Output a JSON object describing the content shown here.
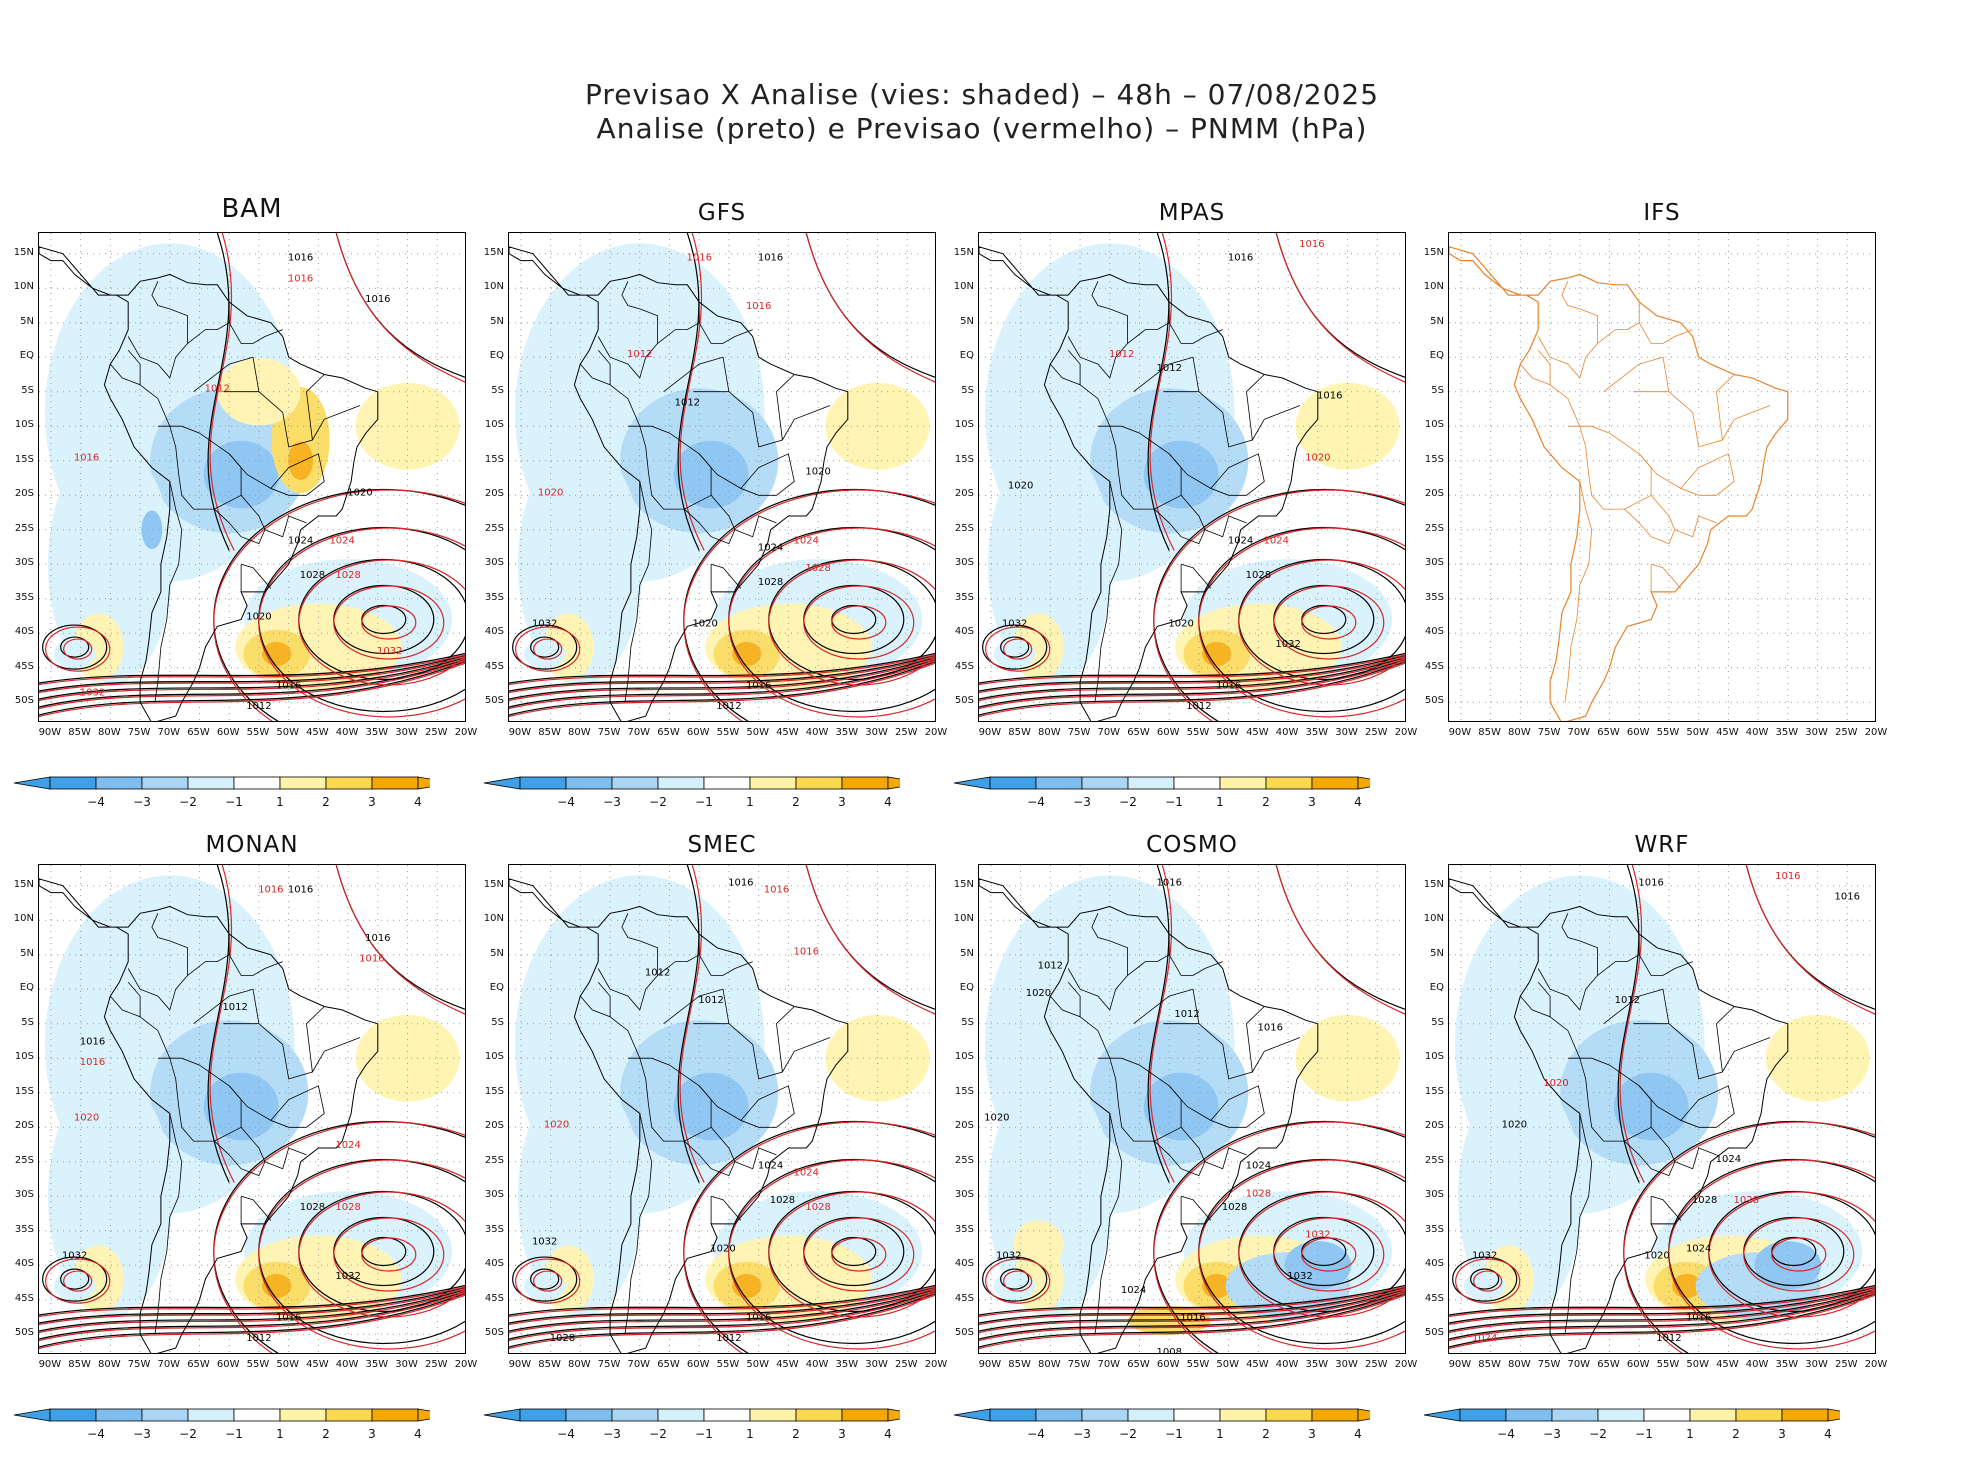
{
  "header": {
    "line1": "Previsao X Analise (vies: shaded) – 48h – 07/08/2025",
    "line2": "Analise (preto) e Previsao (vermelho) – PNMM (hPa)"
  },
  "lat_labels": [
    "15N",
    "10N",
    "5N",
    "EQ",
    "5S",
    "10S",
    "15S",
    "20S",
    "25S",
    "30S",
    "35S",
    "40S",
    "45S",
    "50S"
  ],
  "lon_labels": [
    "90W",
    "85W",
    "80W",
    "75W",
    "70W",
    "65W",
    "60W",
    "55W",
    "50W",
    "45W",
    "40W",
    "35W",
    "30W",
    "25W",
    "20W"
  ],
  "colorbar": {
    "labels": [
      "−4",
      "−3",
      "−2",
      "−1",
      "1",
      "2",
      "3",
      "4"
    ],
    "colors": [
      "#3fa0e8",
      "#7dbdf0",
      "#a9d6f6",
      "#d4f0fb",
      "#ffffff",
      "#fff3a6",
      "#fbd84f",
      "#f5a800"
    ]
  },
  "colors": {
    "analysis": "#000000",
    "forecast": "#d62728",
    "ifs_coast": "#e8842a",
    "neg_bias": "#a9d6f6",
    "pos_bias": "#fbd84f"
  },
  "panels": [
    {
      "id": "bam",
      "title": "BAM",
      "has_data": true,
      "has_colorbar": true,
      "isobar_labels": [
        {
          "text": "1016",
          "color": "black",
          "lat": 14,
          "lon": -48
        },
        {
          "text": "1016",
          "color": "red",
          "lat": 11,
          "lon": -48
        },
        {
          "text": "1016",
          "color": "black",
          "lat": 8,
          "lon": -35
        },
        {
          "text": "1012",
          "color": "red",
          "lat": -5,
          "lon": -62
        },
        {
          "text": "1016",
          "color": "red",
          "lat": -15,
          "lon": -84
        },
        {
          "text": "1020",
          "color": "black",
          "lat": -20,
          "lon": -38
        },
        {
          "text": "1024",
          "color": "black",
          "lat": -27,
          "lon": -48
        },
        {
          "text": "1024",
          "color": "red",
          "lat": -27,
          "lon": -41
        },
        {
          "text": "1028",
          "color": "black",
          "lat": -32,
          "lon": -46
        },
        {
          "text": "1028",
          "color": "red",
          "lat": -32,
          "lon": -40
        },
        {
          "text": "1020",
          "color": "black",
          "lat": -38,
          "lon": -55
        },
        {
          "text": "1032",
          "color": "red",
          "lat": -43,
          "lon": -33
        },
        {
          "text": "1016",
          "color": "black",
          "lat": -48,
          "lon": -50
        },
        {
          "text": "1012",
          "color": "black",
          "lat": -51,
          "lon": -55
        },
        {
          "text": "1032",
          "color": "red",
          "lat": -49,
          "lon": -83
        }
      ]
    },
    {
      "id": "gfs",
      "title": "GFS",
      "has_data": true,
      "has_colorbar": true,
      "isobar_labels": [
        {
          "text": "1016",
          "color": "black",
          "lat": 14,
          "lon": -48
        },
        {
          "text": "1016",
          "color": "red",
          "lat": 14,
          "lon": -60
        },
        {
          "text": "1016",
          "color": "red",
          "lat": 7,
          "lon": -50
        },
        {
          "text": "1012",
          "color": "red",
          "lat": 0,
          "lon": -70
        },
        {
          "text": "1012",
          "color": "black",
          "lat": -7,
          "lon": -62
        },
        {
          "text": "1020",
          "color": "black",
          "lat": -17,
          "lon": -40
        },
        {
          "text": "1020",
          "color": "red",
          "lat": -20,
          "lon": -85
        },
        {
          "text": "1024",
          "color": "black",
          "lat": -28,
          "lon": -48
        },
        {
          "text": "1024",
          "color": "red",
          "lat": -27,
          "lon": -42
        },
        {
          "text": "1028",
          "color": "black",
          "lat": -33,
          "lon": -48
        },
        {
          "text": "1028",
          "color": "red",
          "lat": -31,
          "lon": -40
        },
        {
          "text": "1032",
          "color": "black",
          "lat": -39,
          "lon": -86
        },
        {
          "text": "1020",
          "color": "black",
          "lat": -39,
          "lon": -59
        },
        {
          "text": "1016",
          "color": "black",
          "lat": -48,
          "lon": -50
        },
        {
          "text": "1012",
          "color": "black",
          "lat": -51,
          "lon": -55
        }
      ]
    },
    {
      "id": "mpas",
      "title": "MPAS",
      "has_data": true,
      "has_colorbar": true,
      "isobar_labels": [
        {
          "text": "1016",
          "color": "black",
          "lat": 14,
          "lon": -48
        },
        {
          "text": "1016",
          "color": "red",
          "lat": 16,
          "lon": -36
        },
        {
          "text": "1012",
          "color": "black",
          "lat": -2,
          "lon": -60
        },
        {
          "text": "1012",
          "color": "red",
          "lat": 0,
          "lon": -68
        },
        {
          "text": "1016",
          "color": "black",
          "lat": -6,
          "lon": -33
        },
        {
          "text": "1020",
          "color": "black",
          "lat": -19,
          "lon": -85
        },
        {
          "text": "1020",
          "color": "red",
          "lat": -15,
          "lon": -35
        },
        {
          "text": "1024",
          "color": "black",
          "lat": -27,
          "lon": -48
        },
        {
          "text": "1024",
          "color": "red",
          "lat": -27,
          "lon": -42
        },
        {
          "text": "1028",
          "color": "black",
          "lat": -32,
          "lon": -45
        },
        {
          "text": "1032",
          "color": "black",
          "lat": -39,
          "lon": -86
        },
        {
          "text": "1032",
          "color": "black",
          "lat": -42,
          "lon": -40
        },
        {
          "text": "1020",
          "color": "black",
          "lat": -39,
          "lon": -58
        },
        {
          "text": "1016",
          "color": "black",
          "lat": -48,
          "lon": -50
        },
        {
          "text": "1012",
          "color": "black",
          "lat": -51,
          "lon": -55
        }
      ]
    },
    {
      "id": "ifs",
      "title": "IFS",
      "has_data": false,
      "has_colorbar": false,
      "isobar_labels": []
    },
    {
      "id": "monan",
      "title": "MONAN",
      "has_data": true,
      "has_colorbar": true,
      "isobar_labels": [
        {
          "text": "1016",
          "color": "black",
          "lat": 14,
          "lon": -48
        },
        {
          "text": "1016",
          "color": "red",
          "lat": 14,
          "lon": -53
        },
        {
          "text": "1016",
          "color": "black",
          "lat": 7,
          "lon": -35
        },
        {
          "text": "1016",
          "color": "red",
          "lat": 4,
          "lon": -36
        },
        {
          "text": "1012",
          "color": "black",
          "lat": -3,
          "lon": -59
        },
        {
          "text": "1016",
          "color": "black",
          "lat": -8,
          "lon": -83
        },
        {
          "text": "1016",
          "color": "red",
          "lat": -11,
          "lon": -83
        },
        {
          "text": "1020",
          "color": "red",
          "lat": -19,
          "lon": -84
        },
        {
          "text": "1024",
          "color": "red",
          "lat": -23,
          "lon": -40
        },
        {
          "text": "1028",
          "color": "black",
          "lat": -32,
          "lon": -46
        },
        {
          "text": "1028",
          "color": "red",
          "lat": -32,
          "lon": -40
        },
        {
          "text": "1032",
          "color": "black",
          "lat": -39,
          "lon": -86
        },
        {
          "text": "1032",
          "color": "black",
          "lat": -42,
          "lon": -40
        },
        {
          "text": "1016",
          "color": "black",
          "lat": -48,
          "lon": -50
        },
        {
          "text": "1012",
          "color": "black",
          "lat": -51,
          "lon": -55
        }
      ]
    },
    {
      "id": "smec",
      "title": "SMEC",
      "has_data": true,
      "has_colorbar": true,
      "isobar_labels": [
        {
          "text": "1016",
          "color": "black",
          "lat": 15,
          "lon": -53
        },
        {
          "text": "1016",
          "color": "red",
          "lat": 14,
          "lon": -47
        },
        {
          "text": "1016",
          "color": "red",
          "lat": 5,
          "lon": -42
        },
        {
          "text": "1012",
          "color": "black",
          "lat": 2,
          "lon": -67
        },
        {
          "text": "1012",
          "color": "black",
          "lat": -2,
          "lon": -58
        },
        {
          "text": "1020",
          "color": "red",
          "lat": -20,
          "lon": -84
        },
        {
          "text": "1024",
          "color": "black",
          "lat": -26,
          "lon": -48
        },
        {
          "text": "1024",
          "color": "red",
          "lat": -27,
          "lon": -42
        },
        {
          "text": "1028",
          "color": "black",
          "lat": -31,
          "lon": -46
        },
        {
          "text": "1028",
          "color": "red",
          "lat": -32,
          "lon": -40
        },
        {
          "text": "1032",
          "color": "black",
          "lat": -37,
          "lon": -86
        },
        {
          "text": "1020",
          "color": "black",
          "lat": -38,
          "lon": -56
        },
        {
          "text": "1016",
          "color": "black",
          "lat": -48,
          "lon": -50
        },
        {
          "text": "1012",
          "color": "black",
          "lat": -51,
          "lon": -55
        },
        {
          "text": "1028",
          "color": "black",
          "lat": -51,
          "lon": -83
        }
      ]
    },
    {
      "id": "cosmo",
      "title": "COSMO",
      "has_data": true,
      "has_colorbar": true,
      "isobar_labels": [
        {
          "text": "1016",
          "color": "black",
          "lat": 15,
          "lon": -60
        },
        {
          "text": "1012",
          "color": "black",
          "lat": 3,
          "lon": -80
        },
        {
          "text": "1020",
          "color": "black",
          "lat": -1,
          "lon": -82
        },
        {
          "text": "1012",
          "color": "black",
          "lat": -4,
          "lon": -57
        },
        {
          "text": "1016",
          "color": "black",
          "lat": -6,
          "lon": -43
        },
        {
          "text": "1020",
          "color": "black",
          "lat": -19,
          "lon": -89
        },
        {
          "text": "1024",
          "color": "black",
          "lat": -26,
          "lon": -45
        },
        {
          "text": "1028",
          "color": "black",
          "lat": -32,
          "lon": -49
        },
        {
          "text": "1028",
          "color": "red",
          "lat": -30,
          "lon": -45
        },
        {
          "text": "1032",
          "color": "red",
          "lat": -36,
          "lon": -35
        },
        {
          "text": "1032",
          "color": "black",
          "lat": -39,
          "lon": -87
        },
        {
          "text": "1024",
          "color": "black",
          "lat": -44,
          "lon": -66
        },
        {
          "text": "1032",
          "color": "black",
          "lat": -42,
          "lon": -38
        },
        {
          "text": "1016",
          "color": "black",
          "lat": -48,
          "lon": -56
        },
        {
          "text": "1008",
          "color": "black",
          "lat": -53,
          "lon": -60
        }
      ]
    },
    {
      "id": "wrf",
      "title": "WRF",
      "has_data": true,
      "has_colorbar": true,
      "isobar_labels": [
        {
          "text": "1016",
          "color": "black",
          "lat": 15,
          "lon": -58
        },
        {
          "text": "1016",
          "color": "red",
          "lat": 16,
          "lon": -35
        },
        {
          "text": "1016",
          "color": "black",
          "lat": 13,
          "lon": -25
        },
        {
          "text": "1012",
          "color": "black",
          "lat": -2,
          "lon": -62
        },
        {
          "text": "1020",
          "color": "red",
          "lat": -14,
          "lon": -74
        },
        {
          "text": "1020",
          "color": "black",
          "lat": -20,
          "lon": -81
        },
        {
          "text": "1024",
          "color": "black",
          "lat": -25,
          "lon": -45
        },
        {
          "text": "1028",
          "color": "black",
          "lat": -31,
          "lon": -49
        },
        {
          "text": "1028",
          "color": "red",
          "lat": -31,
          "lon": -42
        },
        {
          "text": "1032",
          "color": "black",
          "lat": -39,
          "lon": -86
        },
        {
          "text": "1020",
          "color": "black",
          "lat": -39,
          "lon": -57
        },
        {
          "text": "1024",
          "color": "black",
          "lat": -38,
          "lon": -50
        },
        {
          "text": "1016",
          "color": "black",
          "lat": -48,
          "lon": -50
        },
        {
          "text": "1012",
          "color": "black",
          "lat": -51,
          "lon": -55
        },
        {
          "text": "1024",
          "color": "red",
          "lat": -51,
          "lon": -86
        }
      ]
    }
  ]
}
